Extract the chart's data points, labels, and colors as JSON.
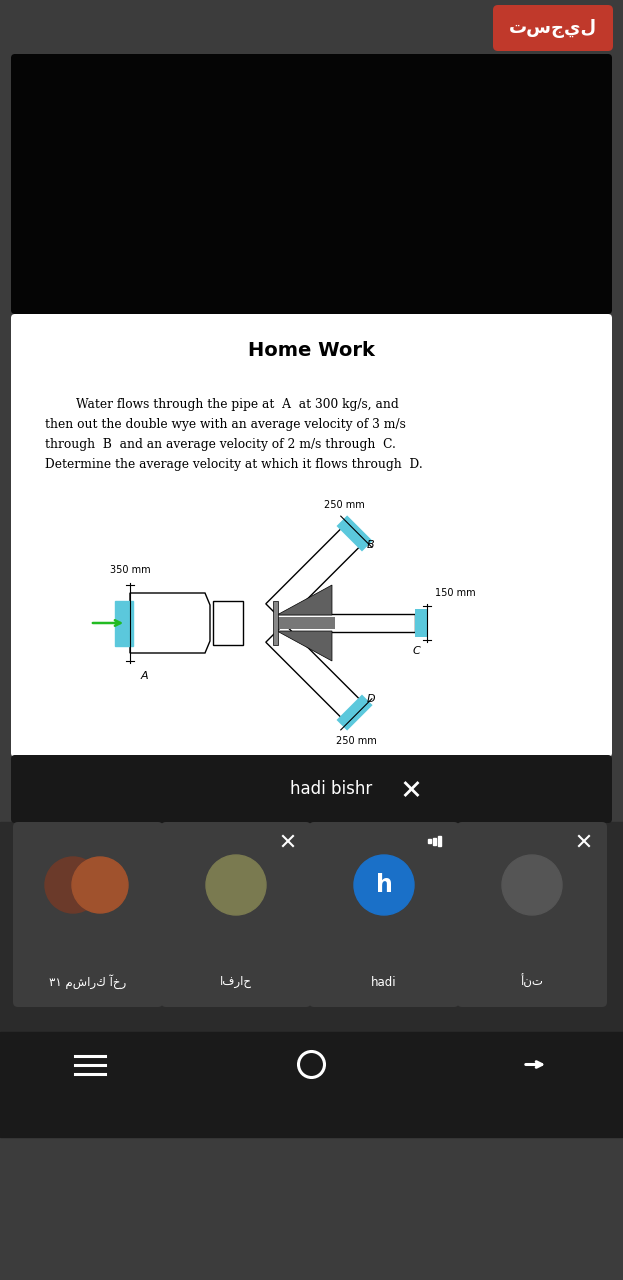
{
  "bg_dark": "#3c3c3c",
  "bg_black": "#000000",
  "bg_white": "#ffffff",
  "red_btn": "#c0392b",
  "blue_pipe": "#5bc8dc",
  "arrow_green": "#22aa22",
  "title": "Home Work",
  "line1": "        Water flows through the pipe at  A  at 300 kg/s, and",
  "line2": "then out the double wye with an average velocity of 3 m/s",
  "line3": "through  B  and an average velocity of 2 m/s through  C.",
  "line4": "Determine the average velocity at which it flows through  D.",
  "label_350": "350 mm",
  "label_250_top": "250 mm",
  "label_150": "150 mm",
  "label_250_bot": "250 mm",
  "label_A": "A",
  "label_B": "B",
  "label_C": "C",
  "label_D": "D",
  "arabic_register": "تسجيل",
  "name_hadi": "hadi bishr",
  "name_afrah": "افراح",
  "name_hadi2": "hadi",
  "name_ant": "أنت",
  "participants": "٣١ مشارك آخر",
  "card_dark": "#3a3a3a",
  "bottom_dark": "#2b2b2b",
  "nav_dark": "#1e1e1e"
}
